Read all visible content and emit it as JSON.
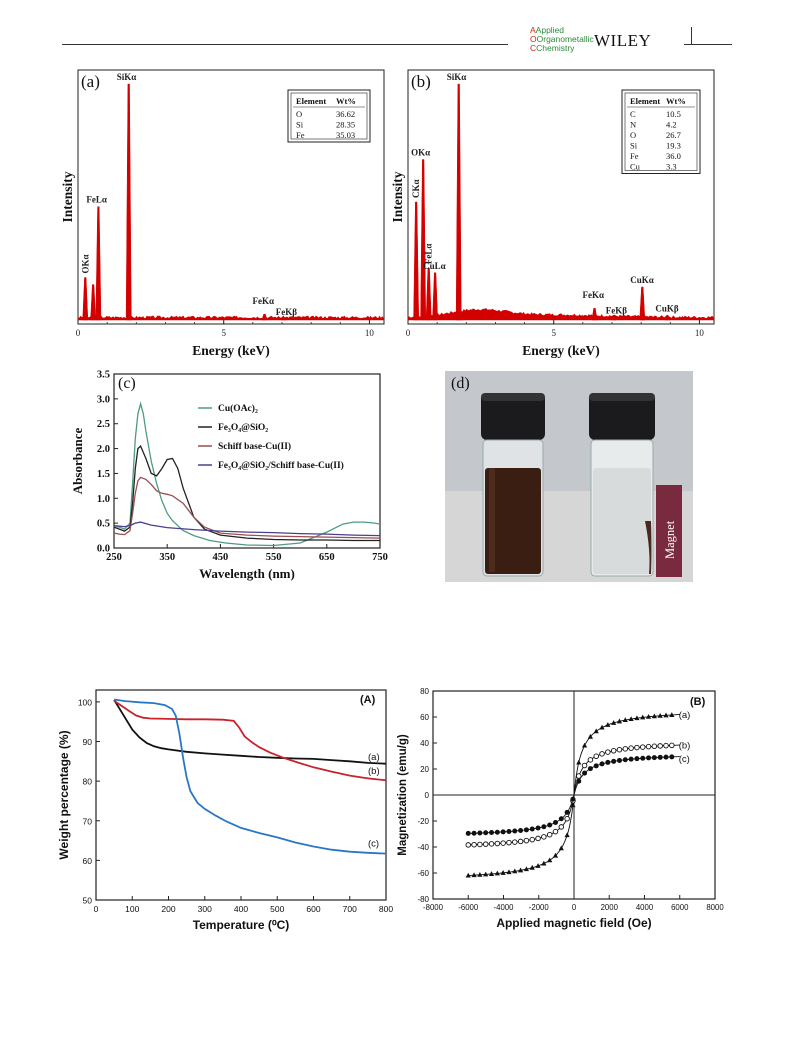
{
  "header": {
    "journal_line1": "Applied",
    "journal_line2": "Organometallic",
    "journal_line3": "Chemistry",
    "publisher": "WILEY"
  },
  "colors": {
    "eds_red": "#d40000"
  },
  "chart_data": [
    {
      "id": "a",
      "type": "line",
      "panel_label": "(a)",
      "xlabel": "Energy (keV)",
      "ylabel": "Intensity",
      "xlim": [
        0,
        10.5
      ],
      "xticks": [
        0,
        5,
        10
      ],
      "peaks": [
        {
          "x": 0.25,
          "h": 0.18,
          "label": "OKα",
          "vertical": true
        },
        {
          "x": 0.52,
          "h": 0.15
        },
        {
          "x": 0.7,
          "h": 0.48,
          "label": "FeLα"
        },
        {
          "x": 1.74,
          "h": 1.0,
          "label": "SiKα"
        },
        {
          "x": 6.4,
          "h": 0.025,
          "label": "FeKα"
        },
        {
          "x": 7.06,
          "h": 0.012,
          "label": "FeKβ"
        }
      ],
      "table": {
        "headers": [
          "Element",
          "Wt%"
        ],
        "rows": [
          [
            "O",
            "36.62"
          ],
          [
            "Si",
            "28.35"
          ],
          [
            "Fe",
            "35.03"
          ]
        ]
      }
    },
    {
      "id": "b",
      "type": "line",
      "panel_label": "(b)",
      "xlabel": "Energy (keV)",
      "ylabel": "Intensity",
      "xlim": [
        0,
        10.5
      ],
      "xticks": [
        0,
        5,
        10
      ],
      "peaks": [
        {
          "x": 0.28,
          "h": 0.5,
          "label": "CKα",
          "vertical": true
        },
        {
          "x": 0.52,
          "h": 0.68,
          "label": "OKα"
        },
        {
          "x": 0.71,
          "h": 0.22,
          "label": "FeLα",
          "vertical": true
        },
        {
          "x": 0.93,
          "h": 0.2,
          "label": "CuLα"
        },
        {
          "x": 1.74,
          "h": 1.0,
          "label": "SiKα"
        },
        {
          "x": 6.4,
          "h": 0.05,
          "label": "FeKα"
        },
        {
          "x": 7.06,
          "h": 0.02,
          "label": "FeKβ"
        },
        {
          "x": 8.04,
          "h": 0.14,
          "label": "CuKα"
        },
        {
          "x": 8.9,
          "h": 0.02,
          "label": "CuKβ"
        }
      ],
      "table": {
        "headers": [
          "Element",
          "Wt%"
        ],
        "rows": [
          [
            "C",
            "10.5"
          ],
          [
            "N",
            "4.2"
          ],
          [
            "O",
            "26.7"
          ],
          [
            "Si",
            "19.3"
          ],
          [
            "Fe",
            "36.0"
          ],
          [
            "Cu",
            "3.3"
          ]
        ]
      }
    },
    {
      "id": "c",
      "type": "line",
      "panel_label": "(c)",
      "xlabel": "Wavelength (nm)",
      "ylabel": "Absorbance",
      "xlim": [
        250,
        750
      ],
      "ylim": [
        0,
        3.5
      ],
      "xticks": [
        250,
        350,
        450,
        550,
        650,
        750
      ],
      "yticks": [
        0.0,
        0.5,
        1.0,
        1.5,
        2.0,
        2.5,
        3.0,
        3.5
      ],
      "legend_position": "top-right",
      "series": [
        {
          "name": "Cu(OAc)₂",
          "color": "#4e9b84",
          "x": [
            250,
            260,
            270,
            280,
            285,
            290,
            295,
            300,
            305,
            310,
            320,
            330,
            340,
            350,
            360,
            380,
            400,
            430,
            460,
            500,
            550,
            600,
            650,
            680,
            700,
            720,
            740,
            750
          ],
          "y": [
            0.45,
            0.42,
            0.38,
            0.5,
            1.3,
            2.2,
            2.7,
            2.9,
            2.7,
            2.35,
            1.75,
            1.3,
            0.95,
            0.7,
            0.55,
            0.35,
            0.25,
            0.15,
            0.1,
            0.06,
            0.05,
            0.1,
            0.32,
            0.48,
            0.52,
            0.52,
            0.5,
            0.48
          ]
        },
        {
          "name": "Fe₃O₄@SiO₂",
          "color": "#222222",
          "x": [
            250,
            260,
            270,
            280,
            285,
            290,
            295,
            300,
            310,
            320,
            330,
            340,
            350,
            360,
            370,
            380,
            400,
            420,
            450,
            500,
            550,
            600,
            650,
            700,
            750
          ],
          "y": [
            0.42,
            0.38,
            0.34,
            0.42,
            0.9,
            1.6,
            2.0,
            2.05,
            1.8,
            1.5,
            1.45,
            1.6,
            1.78,
            1.8,
            1.6,
            1.2,
            0.62,
            0.38,
            0.26,
            0.2,
            0.17,
            0.16,
            0.16,
            0.15,
            0.15
          ]
        },
        {
          "name": "Schiff base-Cu(II)",
          "color": "#9a4f4f",
          "x": [
            250,
            260,
            270,
            280,
            285,
            290,
            295,
            300,
            310,
            320,
            330,
            340,
            350,
            360,
            380,
            400,
            420,
            450,
            500,
            550,
            600,
            650,
            700,
            750
          ],
          "y": [
            0.3,
            0.28,
            0.27,
            0.35,
            0.7,
            1.1,
            1.35,
            1.42,
            1.38,
            1.28,
            1.15,
            1.1,
            1.08,
            1.05,
            0.9,
            0.62,
            0.42,
            0.3,
            0.26,
            0.24,
            0.23,
            0.22,
            0.21,
            0.2
          ]
        },
        {
          "name": "Fe₃O₄@SiO₂/Schiff base-Cu(II)",
          "color": "#4b3f8f",
          "x": [
            250,
            260,
            270,
            280,
            290,
            300,
            320,
            350,
            400,
            450,
            500,
            550,
            600,
            650,
            700,
            750
          ],
          "y": [
            0.45,
            0.44,
            0.43,
            0.45,
            0.5,
            0.52,
            0.46,
            0.41,
            0.37,
            0.34,
            0.32,
            0.31,
            0.29,
            0.28,
            0.26,
            0.25
          ]
        }
      ]
    },
    {
      "id": "A",
      "type": "line",
      "panel_label": "(A)",
      "xlabel": "Temperature (⁰C)",
      "ylabel": "Weight percentage (%)",
      "xlim": [
        0,
        800
      ],
      "ylim": [
        50,
        103
      ],
      "xticks": [
        0,
        100,
        200,
        300,
        400,
        500,
        600,
        700,
        800
      ],
      "yticks": [
        50,
        60,
        70,
        80,
        90,
        100
      ],
      "series": [
        {
          "name": "(a)",
          "color": "#111111",
          "x": [
            50,
            60,
            80,
            100,
            120,
            140,
            160,
            180,
            200,
            250,
            300,
            350,
            400,
            450,
            500,
            550,
            600,
            650,
            700,
            750,
            800
          ],
          "y": [
            100.5,
            99,
            96,
            93,
            91,
            89.6,
            88.8,
            88.3,
            88,
            87.4,
            87.0,
            86.7,
            86.4,
            86.1,
            85.9,
            85.7,
            85.6,
            85.3,
            85.0,
            84.6,
            84.4
          ]
        },
        {
          "name": "(b)",
          "color": "#c8232c",
          "x": [
            50,
            70,
            90,
            110,
            130,
            150,
            200,
            250,
            300,
            350,
            380,
            395,
            410,
            430,
            450,
            480,
            520,
            560,
            600,
            650,
            700,
            750,
            800
          ],
          "y": [
            100.3,
            99,
            97.8,
            96.6,
            96.0,
            95.8,
            95.7,
            95.6,
            95.6,
            95.5,
            95.2,
            93.5,
            91.3,
            89.8,
            88.6,
            87.2,
            85.8,
            84.6,
            83.5,
            82.4,
            81.4,
            80.7,
            80.2
          ]
        },
        {
          "name": "(c)",
          "color": "#2a76c6",
          "x": [
            50,
            80,
            120,
            160,
            190,
            210,
            220,
            230,
            240,
            250,
            260,
            280,
            300,
            330,
            360,
            400,
            450,
            500,
            550,
            600,
            650,
            700,
            750,
            800
          ],
          "y": [
            100.6,
            100.2,
            99.9,
            99.7,
            99.2,
            98.2,
            96.5,
            92,
            86,
            81,
            77.5,
            74.5,
            73,
            71.3,
            69.8,
            68.2,
            66.9,
            65.8,
            64.5,
            63.5,
            62.7,
            62.2,
            61.9,
            61.7
          ]
        }
      ]
    },
    {
      "id": "B",
      "type": "scatter",
      "panel_label": "(B)",
      "xlabel": "Applied magnetic field (Oe)",
      "ylabel": "Magnetization (emu/g)",
      "xlim": [
        -8000,
        8000
      ],
      "ylim": [
        -80,
        80
      ],
      "xticks": [
        -8000,
        -6000,
        -4000,
        -2000,
        0,
        2000,
        4000,
        6000,
        8000
      ],
      "yticks": [
        -80,
        -60,
        -40,
        -20,
        0,
        20,
        40,
        60,
        80
      ],
      "series": [
        {
          "name": "(a)",
          "marker": "triangle",
          "ms": 64,
          "hk": 450
        },
        {
          "name": "(b)",
          "marker": "circle-open",
          "ms": 40,
          "hk": 500
        },
        {
          "name": "(c)",
          "marker": "circle-filled",
          "ms": 31,
          "hk": 550
        }
      ]
    }
  ],
  "photo": {
    "panel_label": "(d)",
    "magnet_label": "Magnet"
  }
}
